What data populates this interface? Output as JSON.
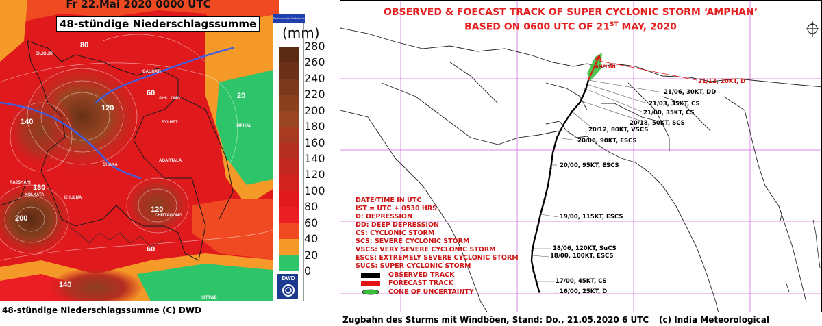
{
  "left": {
    "top_title": "Fr 22.Mai 2020 0000 UTC",
    "map_title": "48-stündige Niederschlagssumme",
    "legend_header": "Bedeutendste Farbtabelle",
    "unit": "(mm)",
    "legend_values": [
      "280",
      "260",
      "240",
      "220",
      "200",
      "180",
      "160",
      "140",
      "120",
      "100",
      "80",
      "60",
      "40",
      "20",
      "0"
    ],
    "legend_colors": {
      "280": "#5a2a14",
      "260": "#6a3118",
      "240": "#7b391c",
      "220": "#8a3f1f",
      "200": "#9a4522",
      "180": "#a83a22",
      "160": "#b52e22",
      "140": "#c2281f",
      "120": "#d2221e",
      "100": "#e0191d",
      "80": "#ea1e24",
      "60": "#ef4a22",
      "40": "#f59a28",
      "20": "#2ec46a",
      "0": "#ffffff"
    },
    "contour_labels": [
      "80",
      "60",
      "20",
      "120",
      "140",
      "180",
      "200",
      "120",
      "60",
      "140"
    ],
    "places": [
      "SILIGURI",
      "GAUHATI",
      "SHILLONG",
      "SYLHET",
      "IMPHAL",
      "DHAKA",
      "AGARTALA",
      "KOLKATA",
      "CHITTAGONG",
      "KHULNA",
      "RAJSHAHI",
      "SITTWE"
    ],
    "logo_text": "DWD",
    "caption": "48-stündige Niederschlagssumme (C) DWD"
  },
  "right": {
    "title_line1": "OBSERVED & FOECAST TRACK OF SUPER CYCLONIC STORM ‘AMPHAN’",
    "title_line2_pre": "BASED ON 0600 UTC OF 21",
    "title_line2_sup": "ST",
    "title_line2_post": " MAY, 2020",
    "legend_lines": [
      "DATE/TIME IN UTC",
      "IST = UTC + 0530 HRS",
      "D: DEPRESSION",
      "DD: DEEP DEPRESSION",
      "CS: CYCLONIC STORM",
      "SCS: SEVERE CYCLONIC STORM",
      "VSCS: VERY SEVERE CYCLONIC STORM",
      "ESCS: EXTREMELY SEVERE CYCLONIC STORM",
      "SUCS: SUPER CYCLONIC STORM"
    ],
    "legend_symbols": [
      {
        "label": "OBSERVED TRACK",
        "color": "#000000"
      },
      {
        "label": "FORECAST TRACK",
        "color": "#e41414"
      },
      {
        "label": "CONE OF UNCERTAINTY",
        "color": "#3cbf3c"
      }
    ],
    "track_points": [
      {
        "label": "21/12, 20KT, D",
        "forecast": true
      },
      {
        "label": "21/06, 30KT, DD",
        "forecast": false
      },
      {
        "label": "21/03, 35KT, CS",
        "forecast": false
      },
      {
        "label": "21/00, 35KT, CS",
        "forecast": false
      },
      {
        "label": "20/18, 50KT, SCS",
        "forecast": false
      },
      {
        "label": "20/12, 80KT, VSCS",
        "forecast": false
      },
      {
        "label": "20/06, 90KT, ESCS",
        "forecast": false
      },
      {
        "label": "20/00, 95KT, ESCS",
        "forecast": false
      },
      {
        "label": "19/00, 115KT, ESCS",
        "forecast": false
      },
      {
        "label": "18/06, 120KT, SuCS",
        "forecast": false
      },
      {
        "label": "18/00, 100KT, ESCS",
        "forecast": false
      },
      {
        "label": "17/00, 45KT, CS",
        "forecast": false
      },
      {
        "label": "16/00, 25KT, D",
        "forecast": false
      }
    ],
    "storm_name": "AMPHAN",
    "caption_left": "Zugbahn des Sturms mit Windböen, Stand: Do., 21.05.2020 6 UTC",
    "caption_right": "(c) India Meteorological Department"
  }
}
